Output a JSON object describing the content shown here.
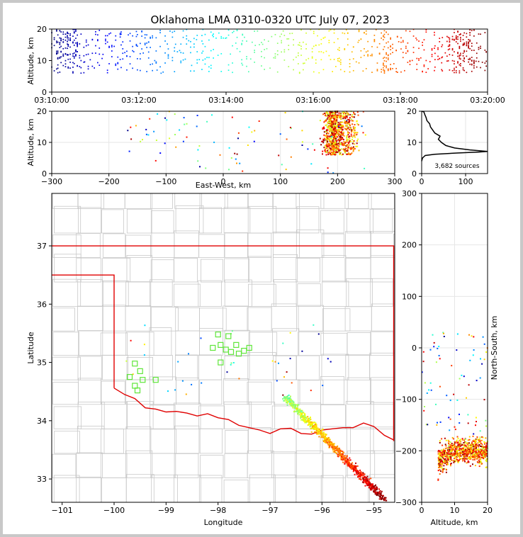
{
  "chart_data": {
    "type": "scatter",
    "title": "Oklahoma LMA 0310-0320 UTC July 07, 2023",
    "source_count_label": "3,682 sources",
    "panels": {
      "time_altitude": {
        "ylabel": "Altitude, km",
        "xlim": [
          "03:10:00",
          "03:20:00"
        ],
        "ylim": [
          0,
          20
        ],
        "xticks": [
          "03:10:00",
          "03:12:00",
          "03:14:00",
          "03:16:00",
          "03:18:00",
          "03:20:00"
        ],
        "yticks": [
          "0",
          "10",
          "20"
        ]
      },
      "ew_altitude": {
        "xlabel": "East-West, km",
        "ylabel": "Altitude, km",
        "xlim": [
          -300,
          300
        ],
        "ylim": [
          0,
          20
        ],
        "xticks": [
          "−300",
          "−200",
          "−100",
          "0",
          "100",
          "200",
          "300"
        ],
        "yticks": [
          "0",
          "10",
          "20"
        ]
      },
      "histogram": {
        "xlim": [
          0,
          150
        ],
        "ylim": [
          0,
          20
        ],
        "xticks": [
          "0",
          "100"
        ],
        "yticks": [
          "0",
          "10",
          "20"
        ],
        "profile": [
          [
            0,
            4
          ],
          [
            2,
            5
          ],
          [
            8,
            5.8
          ],
          [
            30,
            6.2
          ],
          [
            80,
            6.6
          ],
          [
            130,
            6.9
          ],
          [
            150,
            7.1
          ],
          [
            110,
            7.6
          ],
          [
            75,
            8.2
          ],
          [
            55,
            9.0
          ],
          [
            45,
            10
          ],
          [
            38,
            11
          ],
          [
            42,
            12
          ],
          [
            30,
            13
          ],
          [
            25,
            14
          ],
          [
            20,
            15
          ],
          [
            18,
            16
          ],
          [
            12,
            17
          ],
          [
            10,
            18
          ],
          [
            7,
            19
          ],
          [
            5,
            19.8
          ],
          [
            0,
            20
          ]
        ]
      },
      "plan_view": {
        "xlabel": "Longitude",
        "ylabel": "Latitude",
        "xlim": [
          -101.2,
          -94.6
        ],
        "ylim": [
          32.6,
          37.9
        ],
        "xticks": [
          "−101",
          "−100",
          "−99",
          "−98",
          "−97",
          "−96",
          "−95"
        ],
        "yticks": [
          "33",
          "34",
          "35",
          "36",
          "37"
        ],
        "stations": [
          [
            -99.6,
            34.98
          ],
          [
            -99.7,
            34.75
          ],
          [
            -99.5,
            34.85
          ],
          [
            -99.45,
            34.7
          ],
          [
            -99.6,
            34.6
          ],
          [
            -99.55,
            34.52
          ],
          [
            -99.2,
            34.7
          ],
          [
            -98.0,
            35.48
          ],
          [
            -97.8,
            35.45
          ],
          [
            -97.95,
            35.3
          ],
          [
            -98.1,
            35.25
          ],
          [
            -97.85,
            35.22
          ],
          [
            -97.75,
            35.18
          ],
          [
            -97.6,
            35.15
          ],
          [
            -97.5,
            35.2
          ],
          [
            -97.4,
            35.25
          ],
          [
            -97.65,
            35.3
          ],
          [
            -97.95,
            35.0
          ]
        ]
      },
      "ns_altitude": {
        "xlabel": "Altitude, km",
        "ylabel": "North-South, km",
        "xlim": [
          0,
          20
        ],
        "ylim": [
          -300,
          300
        ],
        "xticks": [
          "0",
          "10",
          "20"
        ],
        "yticks": [
          "−300",
          "−200",
          "−100",
          "0",
          "100",
          "200",
          "300"
        ]
      }
    }
  }
}
